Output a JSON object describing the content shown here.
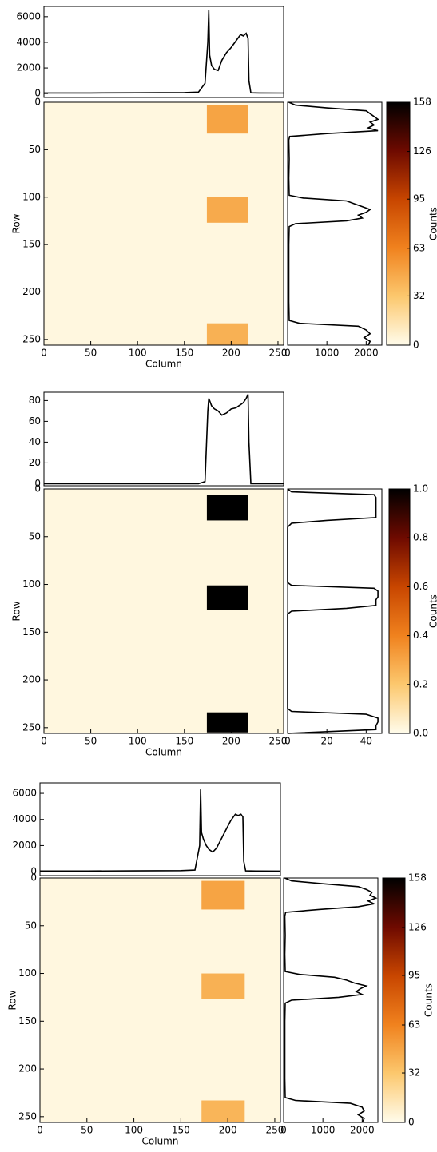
{
  "chart_data": [
    {
      "type": "heatmap",
      "xlabel": "Column",
      "ylabel": "Row",
      "xlim": [
        0,
        256
      ],
      "xticks": [
        0,
        50,
        100,
        150,
        200,
        250
      ],
      "ylim": [
        256,
        0
      ],
      "yticks": [
        0,
        50,
        100,
        150,
        200,
        250
      ],
      "regions": [
        {
          "x": [
            174,
            218
          ],
          "y": [
            3,
            33
          ],
          "value": 48
        },
        {
          "x": [
            174,
            218
          ],
          "y": [
            100,
            127
          ],
          "value": 45
        },
        {
          "x": [
            174,
            218
          ],
          "y": [
            233,
            256
          ],
          "value": 42
        }
      ],
      "colorbar": {
        "label": "Counts",
        "colormap": "afmhot",
        "lim": [
          0,
          158
        ],
        "ticks": [
          0,
          32,
          63,
          95,
          126,
          158
        ]
      },
      "top_profile": {
        "x": [
          0,
          50,
          100,
          150,
          165,
          172,
          175,
          176,
          177,
          179,
          182,
          186,
          190,
          195,
          200,
          205,
          210,
          213,
          216,
          218,
          219,
          221,
          230,
          256
        ],
        "values": [
          50,
          50,
          60,
          80,
          120,
          800,
          4000,
          6500,
          3000,
          2200,
          1900,
          1800,
          2600,
          3200,
          3600,
          4100,
          4600,
          4500,
          4700,
          4300,
          1000,
          60,
          50,
          40
        ],
        "ylim": [
          -300,
          6800
        ],
        "yticks": [
          0,
          2000,
          4000,
          6000
        ]
      },
      "side_profile": {
        "y": [
          0,
          3,
          6,
          9,
          12,
          15,
          18,
          21,
          24,
          27,
          30,
          33,
          36,
          40,
          60,
          80,
          98,
          101,
          104,
          107,
          110,
          113,
          116,
          119,
          122,
          125,
          128,
          131,
          150,
          180,
          210,
          230,
          233,
          236,
          240,
          244,
          248,
          252,
          256
        ],
        "values": [
          30,
          200,
          1000,
          2000,
          2100,
          2200,
          2300,
          2100,
          2200,
          2050,
          2300,
          1000,
          50,
          30,
          40,
          30,
          40,
          400,
          1500,
          1700,
          1900,
          2100,
          2000,
          1800,
          1900,
          1500,
          200,
          40,
          30,
          30,
          30,
          40,
          300,
          1800,
          2000,
          2100,
          1950,
          2100,
          2050
        ],
        "xlim": [
          0,
          2400
        ],
        "xticks": [
          0,
          1000,
          2000
        ]
      }
    },
    {
      "type": "heatmap",
      "xlabel": "Column",
      "ylabel": "Row",
      "xlim": [
        0,
        256
      ],
      "xticks": [
        0,
        50,
        100,
        150,
        200,
        250
      ],
      "ylim": [
        256,
        0
      ],
      "yticks": [
        0,
        50,
        100,
        150,
        200,
        250
      ],
      "regions": [
        {
          "x": [
            174,
            218
          ],
          "y": [
            6,
            33
          ],
          "value": 1
        },
        {
          "x": [
            174,
            218
          ],
          "y": [
            101,
            127
          ],
          "value": 1
        },
        {
          "x": [
            174,
            218
          ],
          "y": [
            234,
            255
          ],
          "value": 1
        }
      ],
      "colorbar": {
        "label": "Counts",
        "colormap": "afmhot",
        "lim": [
          0,
          1
        ],
        "ticks": [
          {
            "value": 0,
            "label": "0.0"
          },
          {
            "value": 0.2,
            "label": "0.2"
          },
          {
            "value": 0.4,
            "label": "0.4"
          },
          {
            "value": 0.6,
            "label": "0.6"
          },
          {
            "value": 0.8,
            "label": "0.8"
          },
          {
            "value": 1,
            "label": "1.0"
          }
        ]
      },
      "top_profile": {
        "x": [
          0,
          50,
          100,
          150,
          165,
          172,
          175,
          176,
          177,
          179,
          182,
          186,
          190,
          195,
          200,
          205,
          210,
          213,
          216,
          218,
          219,
          221,
          230,
          256
        ],
        "values": [
          0,
          0,
          0,
          0,
          0,
          2,
          70,
          82,
          80,
          75,
          72,
          70,
          66,
          68,
          72,
          73,
          76,
          78,
          82,
          86,
          40,
          0,
          0,
          0
        ],
        "ylim": [
          -2,
          88
        ],
        "yticks": [
          0,
          20,
          40,
          60,
          80
        ]
      },
      "side_profile": {
        "y": [
          0,
          3,
          6,
          9,
          12,
          15,
          18,
          21,
          24,
          27,
          30,
          33,
          36,
          40,
          60,
          80,
          98,
          101,
          104,
          107,
          110,
          113,
          116,
          119,
          122,
          125,
          128,
          131,
          150,
          180,
          210,
          230,
          233,
          236,
          240,
          244,
          248,
          252,
          256
        ],
        "values": [
          0,
          2,
          44,
          45,
          45,
          45,
          45,
          45,
          45,
          45,
          45,
          20,
          2,
          0,
          0,
          0,
          0,
          2,
          44,
          46,
          46,
          46,
          45,
          45,
          45,
          30,
          2,
          0,
          0,
          0,
          0,
          0,
          2,
          40,
          46,
          46,
          45,
          45,
          0
        ],
        "xlim": [
          0,
          48
        ],
        "xticks": [
          0,
          20,
          40
        ]
      }
    },
    {
      "type": "heatmap",
      "xlabel": "Column",
      "ylabel": "Row",
      "xlim": [
        0,
        256
      ],
      "xticks": [
        0,
        50,
        100,
        150,
        200,
        250
      ],
      "ylim": [
        256,
        0
      ],
      "yticks": [
        0,
        50,
        100,
        150,
        200,
        250
      ],
      "regions": [
        {
          "x": [
            172,
            218
          ],
          "y": [
            3,
            33
          ],
          "value": 48
        },
        {
          "x": [
            172,
            218
          ],
          "y": [
            100,
            127
          ],
          "value": 42
        },
        {
          "x": [
            172,
            218
          ],
          "y": [
            233,
            256
          ],
          "value": 40
        }
      ],
      "colorbar": {
        "label": "Counts",
        "colormap": "afmhot",
        "lim": [
          0,
          158
        ],
        "ticks": [
          0,
          32,
          63,
          95,
          126,
          158
        ]
      },
      "top_profile": {
        "x": [
          0,
          50,
          100,
          150,
          165,
          170,
          171,
          172,
          174,
          177,
          180,
          184,
          188,
          193,
          198,
          203,
          208,
          211,
          214,
          216,
          217,
          219,
          230,
          256
        ],
        "values": [
          50,
          50,
          60,
          80,
          120,
          2000,
          6300,
          3000,
          2500,
          2000,
          1700,
          1500,
          1800,
          2500,
          3200,
          3900,
          4400,
          4300,
          4400,
          4200,
          800,
          60,
          50,
          40
        ],
        "ylim": [
          -300,
          6800
        ],
        "yticks": [
          0,
          2000,
          4000,
          6000
        ]
      },
      "side_profile": {
        "y": [
          0,
          3,
          6,
          9,
          12,
          15,
          18,
          21,
          24,
          27,
          30,
          33,
          36,
          40,
          60,
          80,
          98,
          101,
          104,
          107,
          110,
          113,
          116,
          119,
          122,
          125,
          128,
          131,
          150,
          180,
          210,
          230,
          233,
          236,
          240,
          244,
          248,
          252,
          256
        ],
        "values": [
          30,
          200,
          1000,
          1900,
          2100,
          2250,
          2200,
          2350,
          2150,
          2300,
          1900,
          900,
          50,
          30,
          40,
          30,
          40,
          400,
          1300,
          1600,
          1800,
          2100,
          1950,
          1850,
          2000,
          1400,
          200,
          40,
          30,
          30,
          30,
          40,
          300,
          1700,
          2000,
          2050,
          1900,
          2050,
          2000
        ],
        "xlim": [
          0,
          2400
        ],
        "xticks": [
          0,
          1000,
          2000
        ]
      }
    }
  ]
}
